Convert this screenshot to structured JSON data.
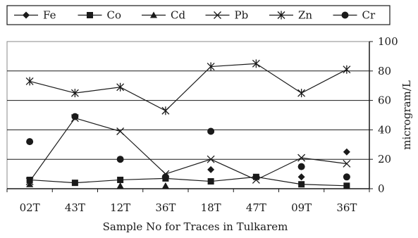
{
  "chart_data": {
    "type": "line",
    "xlabel": "Sample No for Traces in Tulkarem",
    "ylabel": "microgram/L",
    "categories": [
      "02T",
      "43T",
      "12T",
      "36T",
      "18T",
      "47T",
      "09T",
      "36T"
    ],
    "ylim": [
      0,
      100
    ],
    "yticks": [
      "0",
      "20",
      "40",
      "60",
      "80",
      "100"
    ],
    "y_axis_side": "right",
    "grid": true,
    "legend_position": "top",
    "series": [
      {
        "name": "Fe",
        "marker": "diamond",
        "color": "#1a1a1a",
        "values": [
          null,
          null,
          null,
          null,
          13,
          null,
          8,
          25
        ],
        "connected": false
      },
      {
        "name": "Co",
        "marker": "square",
        "color": "#1a1a1a",
        "values": [
          6,
          4,
          6,
          7,
          5,
          8,
          3,
          2
        ],
        "connected": true
      },
      {
        "name": "Cd",
        "marker": "triangle",
        "color": "#1a1a1a",
        "values": [
          3,
          null,
          2,
          2,
          null,
          null,
          null,
          null
        ],
        "connected": false
      },
      {
        "name": "Pb",
        "marker": "x",
        "color": "#1a1a1a",
        "values": [
          5,
          48,
          39,
          10,
          20,
          6,
          21,
          17
        ],
        "connected": true
      },
      {
        "name": "Zn",
        "marker": "star",
        "color": "#1a1a1a",
        "values": [
          73,
          65,
          69,
          53,
          83,
          85,
          65,
          81
        ],
        "connected": true
      },
      {
        "name": "Cr",
        "marker": "circle",
        "color": "#1a1a1a",
        "values": [
          32,
          49,
          20,
          8,
          39,
          null,
          15,
          8
        ],
        "connected": false
      }
    ]
  }
}
